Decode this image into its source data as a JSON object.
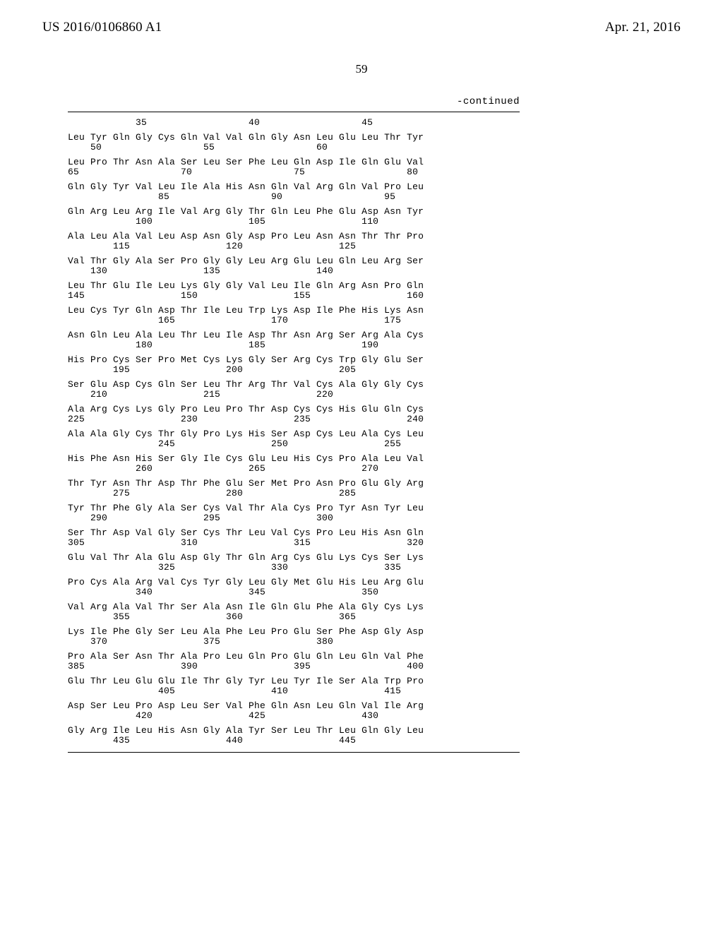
{
  "header": {
    "publication_number": "US 2016/0106860 A1",
    "publication_date": "Apr. 21, 2016"
  },
  "page_number": "59",
  "continued_label": "-continued",
  "sequence": {
    "font_family": "Courier New",
    "font_size_pt": 10,
    "col_width_chars": 4,
    "rows": [
      {
        "aa": "            35                  40                  45",
        "nums": ""
      },
      {
        "aa": "Leu Tyr Gln Gly Cys Gln Val Val Gln Gly Asn Leu Glu Leu Thr Tyr",
        "nums": "    50                  55                  60"
      },
      {
        "aa": "Leu Pro Thr Asn Ala Ser Leu Ser Phe Leu Gln Asp Ile Gln Glu Val",
        "nums": "65                  70                  75                  80"
      },
      {
        "aa": "Gln Gly Tyr Val Leu Ile Ala His Asn Gln Val Arg Gln Val Pro Leu",
        "nums": "                85                  90                  95"
      },
      {
        "aa": "Gln Arg Leu Arg Ile Val Arg Gly Thr Gln Leu Phe Glu Asp Asn Tyr",
        "nums": "            100                 105                 110"
      },
      {
        "aa": "Ala Leu Ala Val Leu Asp Asn Gly Asp Pro Leu Asn Asn Thr Thr Pro",
        "nums": "        115                 120                 125"
      },
      {
        "aa": "Val Thr Gly Ala Ser Pro Gly Gly Leu Arg Glu Leu Gln Leu Arg Ser",
        "nums": "    130                 135                 140"
      },
      {
        "aa": "Leu Thr Glu Ile Leu Lys Gly Gly Val Leu Ile Gln Arg Asn Pro Gln",
        "nums": "145                 150                 155                 160"
      },
      {
        "aa": "Leu Cys Tyr Gln Asp Thr Ile Leu Trp Lys Asp Ile Phe His Lys Asn",
        "nums": "                165                 170                 175"
      },
      {
        "aa": "Asn Gln Leu Ala Leu Thr Leu Ile Asp Thr Asn Arg Ser Arg Ala Cys",
        "nums": "            180                 185                 190"
      },
      {
        "aa": "His Pro Cys Ser Pro Met Cys Lys Gly Ser Arg Cys Trp Gly Glu Ser",
        "nums": "        195                 200                 205"
      },
      {
        "aa": "Ser Glu Asp Cys Gln Ser Leu Thr Arg Thr Val Cys Ala Gly Gly Cys",
        "nums": "    210                 215                 220"
      },
      {
        "aa": "Ala Arg Cys Lys Gly Pro Leu Pro Thr Asp Cys Cys His Glu Gln Cys",
        "nums": "225                 230                 235                 240"
      },
      {
        "aa": "Ala Ala Gly Cys Thr Gly Pro Lys His Ser Asp Cys Leu Ala Cys Leu",
        "nums": "                245                 250                 255"
      },
      {
        "aa": "His Phe Asn His Ser Gly Ile Cys Glu Leu His Cys Pro Ala Leu Val",
        "nums": "            260                 265                 270"
      },
      {
        "aa": "Thr Tyr Asn Thr Asp Thr Phe Glu Ser Met Pro Asn Pro Glu Gly Arg",
        "nums": "        275                 280                 285"
      },
      {
        "aa": "Tyr Thr Phe Gly Ala Ser Cys Val Thr Ala Cys Pro Tyr Asn Tyr Leu",
        "nums": "    290                 295                 300"
      },
      {
        "aa": "Ser Thr Asp Val Gly Ser Cys Thr Leu Val Cys Pro Leu His Asn Gln",
        "nums": "305                 310                 315                 320"
      },
      {
        "aa": "Glu Val Thr Ala Glu Asp Gly Thr Gln Arg Cys Glu Lys Cys Ser Lys",
        "nums": "                325                 330                 335"
      },
      {
        "aa": "Pro Cys Ala Arg Val Cys Tyr Gly Leu Gly Met Glu His Leu Arg Glu",
        "nums": "            340                 345                 350"
      },
      {
        "aa": "Val Arg Ala Val Thr Ser Ala Asn Ile Gln Glu Phe Ala Gly Cys Lys",
        "nums": "        355                 360                 365"
      },
      {
        "aa": "Lys Ile Phe Gly Ser Leu Ala Phe Leu Pro Glu Ser Phe Asp Gly Asp",
        "nums": "    370                 375                 380"
      },
      {
        "aa": "Pro Ala Ser Asn Thr Ala Pro Leu Gln Pro Glu Gln Leu Gln Val Phe",
        "nums": "385                 390                 395                 400"
      },
      {
        "aa": "Glu Thr Leu Glu Glu Ile Thr Gly Tyr Leu Tyr Ile Ser Ala Trp Pro",
        "nums": "                405                 410                 415"
      },
      {
        "aa": "Asp Ser Leu Pro Asp Leu Ser Val Phe Gln Asn Leu Gln Val Ile Arg",
        "nums": "            420                 425                 430"
      },
      {
        "aa": "Gly Arg Ile Leu His Asn Gly Ala Tyr Ser Leu Thr Leu Gln Gly Leu",
        "nums": "        435                 440                 445"
      }
    ]
  },
  "colors": {
    "text": "#000000",
    "background": "#ffffff",
    "rule": "#000000"
  }
}
